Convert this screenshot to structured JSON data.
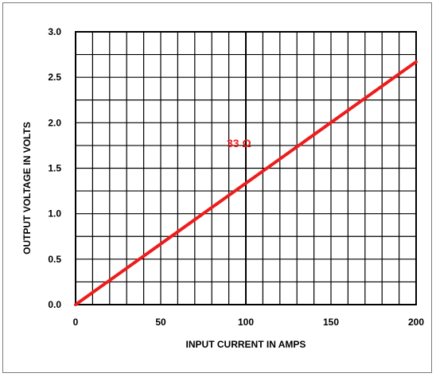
{
  "chart_data": {
    "type": "line",
    "xlabel": "INPUT CURRENT IN AMPS",
    "ylabel": "OUTPUT VOLTAGE IN VOLTS",
    "xlim": [
      0,
      200
    ],
    "ylim": [
      0,
      3.0
    ],
    "x_ticks": [
      0,
      50,
      100,
      150,
      200
    ],
    "x_tick_labels": [
      "0",
      "50",
      "100",
      "150",
      "200"
    ],
    "y_ticks": [
      0,
      0.5,
      1.0,
      1.5,
      2.0,
      2.5,
      3.0
    ],
    "y_tick_labels": [
      "0.0",
      "0.5",
      "1.0",
      "1.5",
      "2.0",
      "2.5",
      "3.0"
    ],
    "x_minor_step": 10,
    "y_minor_step": 0.25,
    "grid": true,
    "series": [
      {
        "name": "33 Ω",
        "color": "#ee1c1c",
        "x": [
          0,
          200
        ],
        "y": [
          0,
          2.67
        ]
      }
    ],
    "annotations": [
      {
        "text": "33 Ω",
        "x": 100,
        "y": 1.8,
        "color": "#ee1c1c"
      }
    ]
  }
}
